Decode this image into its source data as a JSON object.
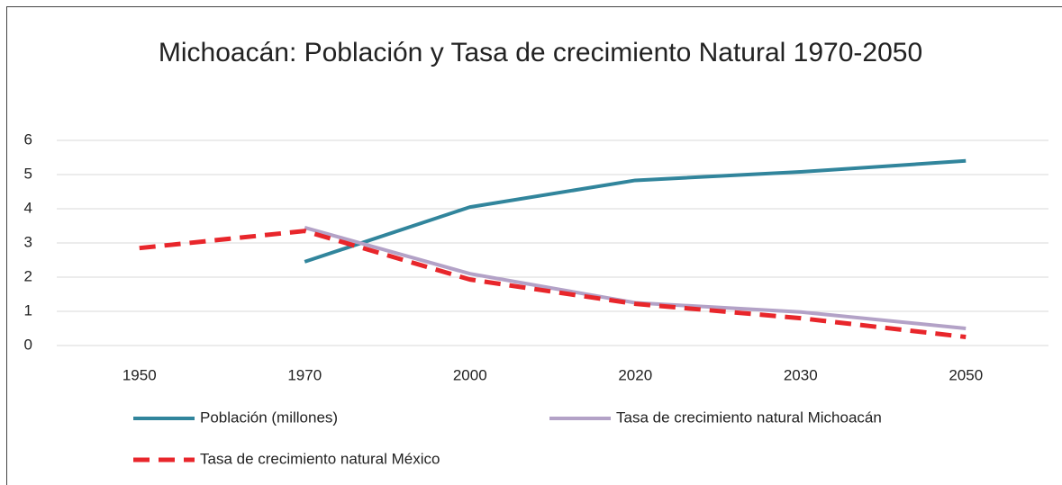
{
  "chart_data": {
    "type": "line",
    "title": "Michoacán: Población y Tasa de crecimiento Natural 1970-2050",
    "categories": [
      "1950",
      "1970",
      "2000",
      "2020",
      "2030",
      "2050"
    ],
    "series": [
      {
        "name": "Población (millones)",
        "color": "#31859c",
        "dash": false,
        "values": [
          null,
          2.45,
          4.05,
          4.83,
          5.08,
          5.4
        ]
      },
      {
        "name": "Tasa de crecimiento natural Michoacán",
        "color": "#b3a2c7",
        "dash": false,
        "values": [
          null,
          3.45,
          2.1,
          1.25,
          0.98,
          0.5
        ]
      },
      {
        "name": "Tasa de crecimiento natural México",
        "color": "#e8262b",
        "dash": true,
        "values": [
          2.85,
          3.35,
          1.93,
          1.22,
          0.8,
          0.25
        ]
      }
    ],
    "ylim": [
      0,
      6
    ],
    "yticks": [
      0,
      1,
      2,
      3,
      4,
      5,
      6
    ],
    "grid": true,
    "legend": "bottom"
  }
}
